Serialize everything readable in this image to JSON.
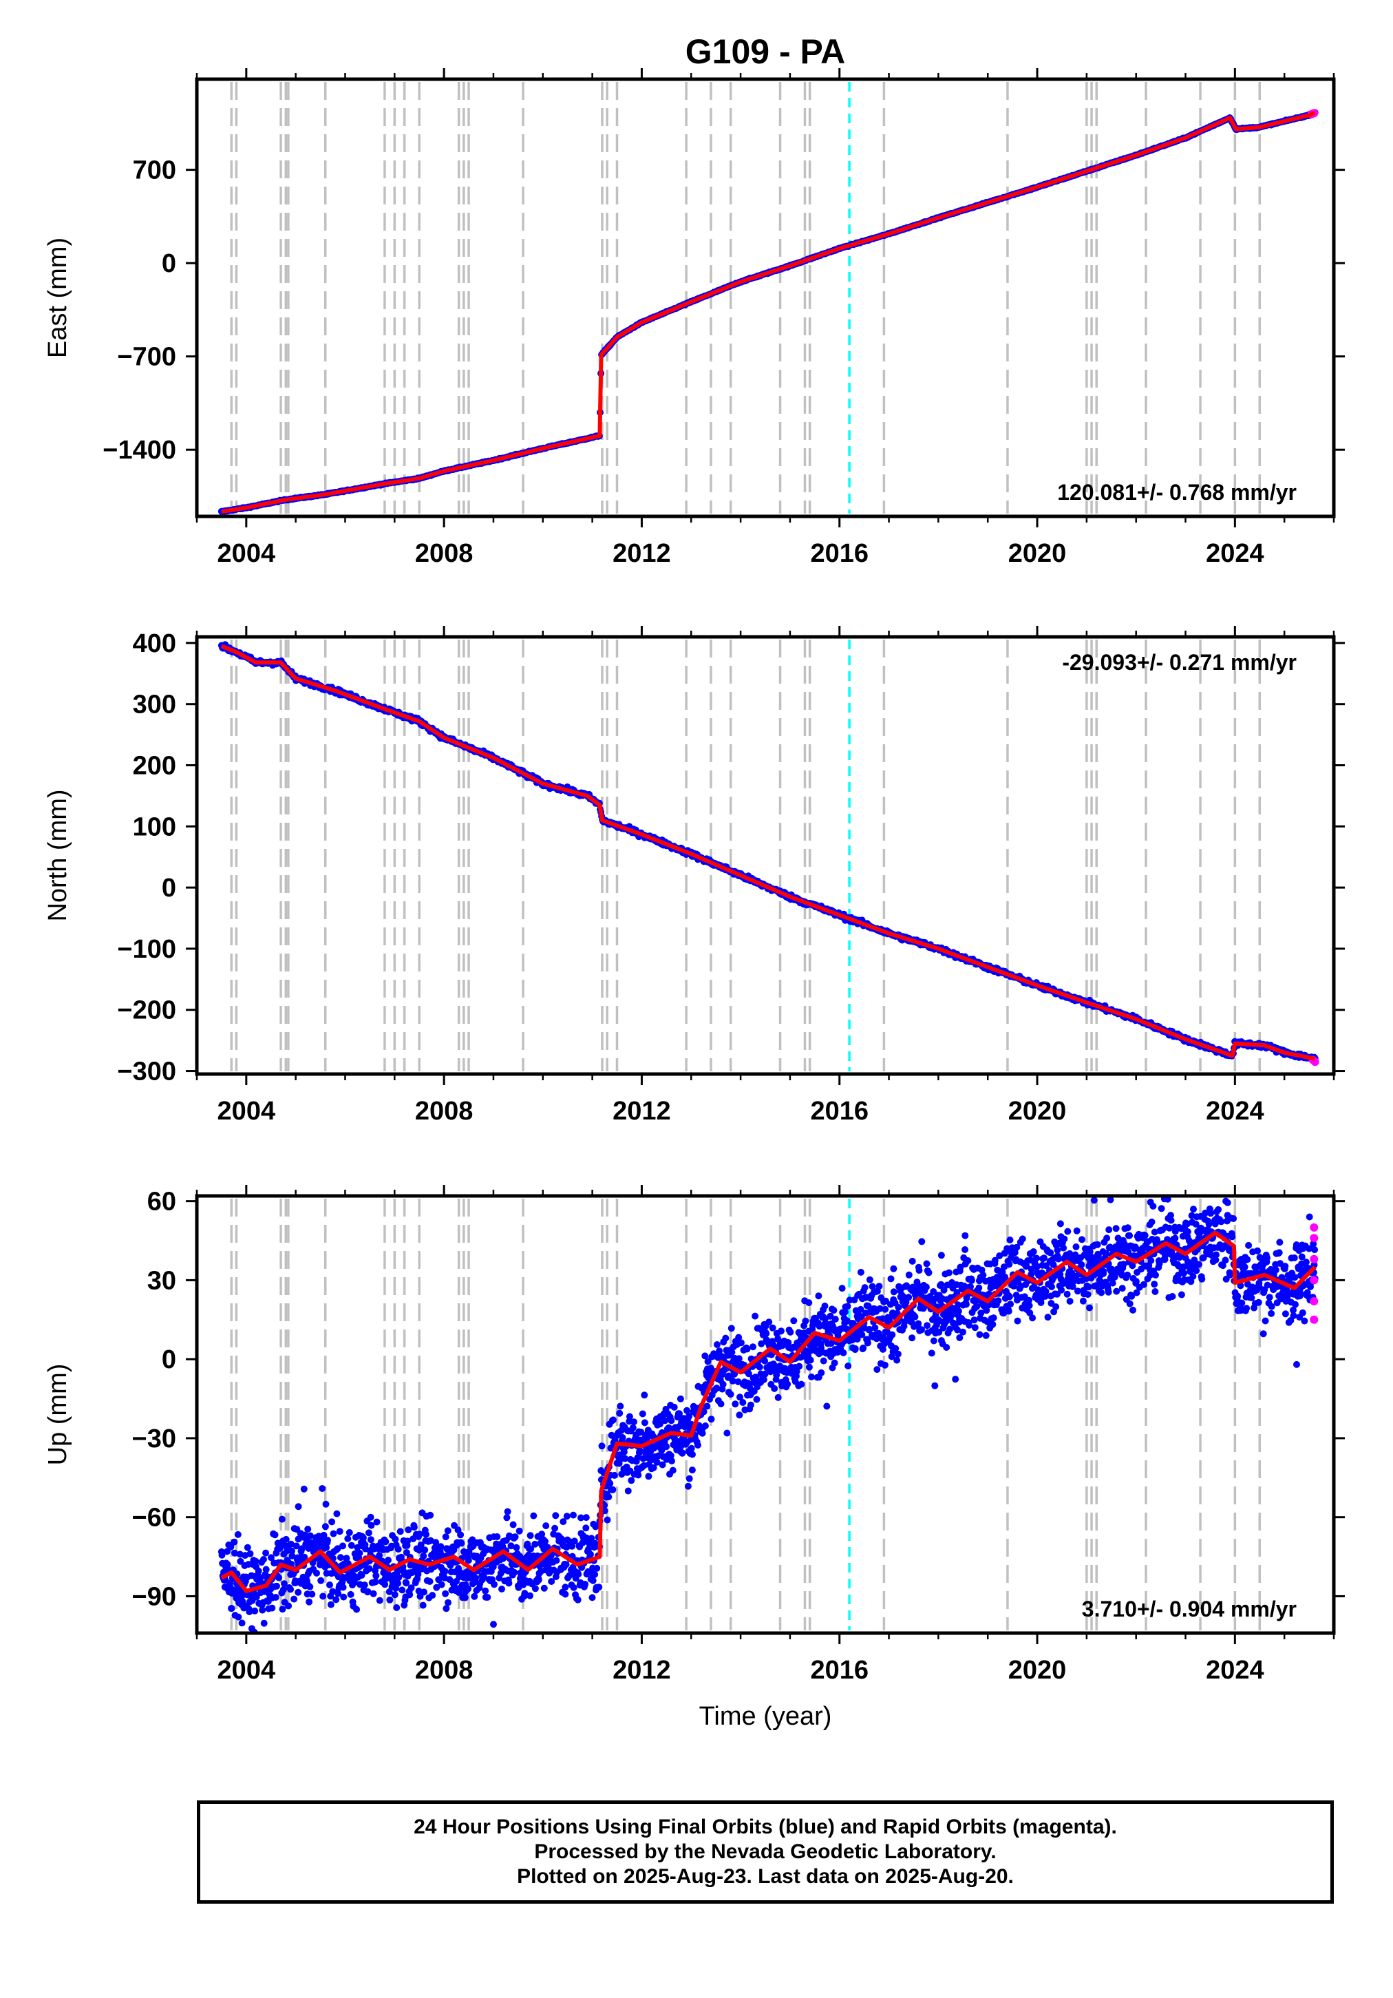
{
  "chart_data": {
    "title": "G109 - PA",
    "type": "scatter",
    "xlabel": "Time (year)",
    "xticks": [
      "2004",
      "2008",
      "2012",
      "2016",
      "2020",
      "2024"
    ],
    "xtick_values": [
      2004,
      2008,
      2012,
      2016,
      2020,
      2024
    ],
    "xlim": [
      2003.0,
      2026.0
    ],
    "step_markers": [
      2003.7,
      2003.8,
      2004.7,
      2004.8,
      2004.85,
      2005.6,
      2006.8,
      2007.0,
      2007.2,
      2007.5,
      2008.3,
      2008.4,
      2008.5,
      2009.6,
      2011.2,
      2011.3,
      2011.5,
      2012.9,
      2013.4,
      2013.8,
      2014.8,
      2015.3,
      2015.4,
      2016.9,
      2019.4,
      2021.0,
      2021.1,
      2021.2,
      2022.2,
      2023.3,
      2024.0,
      2024.5
    ],
    "reference_marker": 2016.2,
    "colors": {
      "final": "#0000ff",
      "rapid": "#ff00ff",
      "model": "#ff0000",
      "step": "#c0c0c0",
      "reference": "#00ffff"
    },
    "panels": [
      {
        "name": "east",
        "ylabel": "East (mm)",
        "yticks": [
          700,
          0,
          -700,
          -1400
        ],
        "ylim": [
          -1900,
          1380
        ],
        "rate": "120.081+/- 0.768 mm/yr",
        "rate_position": "bottom-right",
        "values": [
          [
            2003.5,
            -1865
          ],
          [
            2004.0,
            -1835
          ],
          [
            2004.8,
            -1775
          ],
          [
            2005.6,
            -1735
          ],
          [
            2006.8,
            -1655
          ],
          [
            2007.5,
            -1615
          ],
          [
            2008.0,
            -1560
          ],
          [
            2009.0,
            -1480
          ],
          [
            2010.0,
            -1390
          ],
          [
            2011.15,
            -1295
          ],
          [
            2011.18,
            -690
          ],
          [
            2011.5,
            -555
          ],
          [
            2012.0,
            -445
          ],
          [
            2013.0,
            -290
          ],
          [
            2014.0,
            -140
          ],
          [
            2015.0,
            -20
          ],
          [
            2016.0,
            110
          ],
          [
            2017.0,
            220
          ],
          [
            2018.0,
            340
          ],
          [
            2019.0,
            455
          ],
          [
            2020.0,
            570
          ],
          [
            2021.0,
            690
          ],
          [
            2022.0,
            810
          ],
          [
            2023.0,
            940
          ],
          [
            2023.9,
            1090
          ],
          [
            2024.02,
            1005
          ],
          [
            2024.5,
            1020
          ],
          [
            2025.5,
            1110
          ],
          [
            2025.62,
            1130
          ]
        ],
        "rapid": [
          [
            2025.55,
            1118
          ],
          [
            2025.6,
            1125
          ]
        ]
      },
      {
        "name": "north",
        "ylabel": "North (mm)",
        "yticks": [
          400,
          300,
          200,
          100,
          0,
          -100,
          -200,
          -300
        ],
        "ylim": [
          -305,
          410
        ],
        "rate": "-29.093+/- 0.271 mm/yr",
        "rate_position": "top-right",
        "values": [
          [
            2003.5,
            395
          ],
          [
            2003.8,
            385
          ],
          [
            2004.2,
            368
          ],
          [
            2004.7,
            368
          ],
          [
            2005.0,
            342
          ],
          [
            2005.8,
            322
          ],
          [
            2006.8,
            292
          ],
          [
            2007.5,
            272
          ],
          [
            2008.0,
            245
          ],
          [
            2009.0,
            212
          ],
          [
            2010.0,
            170
          ],
          [
            2010.9,
            150
          ],
          [
            2011.15,
            135
          ],
          [
            2011.2,
            110
          ],
          [
            2012.0,
            87
          ],
          [
            2013.0,
            55
          ],
          [
            2014.0,
            20
          ],
          [
            2015.0,
            -15
          ],
          [
            2016.0,
            -45
          ],
          [
            2017.0,
            -75
          ],
          [
            2018.0,
            -100
          ],
          [
            2019.0,
            -130
          ],
          [
            2020.0,
            -160
          ],
          [
            2021.0,
            -188
          ],
          [
            2022.0,
            -215
          ],
          [
            2023.0,
            -248
          ],
          [
            2023.95,
            -275
          ],
          [
            2024.0,
            -255
          ],
          [
            2024.6,
            -258
          ],
          [
            2025.0,
            -270
          ],
          [
            2025.62,
            -280
          ]
        ],
        "rapid": [
          [
            2025.58,
            -282
          ],
          [
            2025.62,
            -285
          ]
        ]
      },
      {
        "name": "up",
        "ylabel": "Up (mm)",
        "yticks": [
          60,
          30,
          0,
          -30,
          -60,
          -90
        ],
        "ylim": [
          -104,
          62
        ],
        "rate": "3.710+/- 0.904 mm/yr",
        "rate_position": "bottom-right",
        "scatter": 7,
        "values": [
          [
            2003.5,
            -83
          ],
          [
            2003.7,
            -81
          ],
          [
            2004.0,
            -88
          ],
          [
            2004.4,
            -86
          ],
          [
            2004.7,
            -78
          ],
          [
            2005.0,
            -80
          ],
          [
            2005.5,
            -73
          ],
          [
            2005.9,
            -81
          ],
          [
            2006.5,
            -75
          ],
          [
            2006.9,
            -80
          ],
          [
            2007.3,
            -76
          ],
          [
            2007.7,
            -78
          ],
          [
            2008.2,
            -75
          ],
          [
            2008.6,
            -80
          ],
          [
            2009.2,
            -73
          ],
          [
            2009.7,
            -80
          ],
          [
            2010.2,
            -72
          ],
          [
            2010.7,
            -78
          ],
          [
            2011.15,
            -75
          ],
          [
            2011.18,
            -50
          ],
          [
            2011.5,
            -32
          ],
          [
            2012.0,
            -33
          ],
          [
            2012.6,
            -28
          ],
          [
            2013.0,
            -29
          ],
          [
            2013.2,
            -18
          ],
          [
            2013.6,
            -1
          ],
          [
            2014.0,
            -5
          ],
          [
            2014.6,
            4
          ],
          [
            2015.0,
            -1
          ],
          [
            2015.5,
            10
          ],
          [
            2016.0,
            7
          ],
          [
            2016.6,
            16
          ],
          [
            2017.0,
            12
          ],
          [
            2017.6,
            23
          ],
          [
            2018.0,
            18
          ],
          [
            2018.6,
            26
          ],
          [
            2019.0,
            22
          ],
          [
            2019.6,
            33
          ],
          [
            2020.0,
            29
          ],
          [
            2020.6,
            37
          ],
          [
            2021.0,
            32
          ],
          [
            2021.6,
            40
          ],
          [
            2022.0,
            37
          ],
          [
            2022.6,
            44
          ],
          [
            2023.0,
            40
          ],
          [
            2023.6,
            48
          ],
          [
            2023.98,
            43
          ],
          [
            2024.0,
            29
          ],
          [
            2024.6,
            32
          ],
          [
            2025.2,
            27
          ],
          [
            2025.62,
            35
          ]
        ],
        "rapid": [
          [
            2025.6,
            50
          ],
          [
            2025.6,
            46
          ],
          [
            2025.6,
            38
          ],
          [
            2025.6,
            30
          ],
          [
            2025.6,
            22
          ],
          [
            2025.6,
            15
          ]
        ]
      }
    ],
    "caption": [
      "24 Hour Positions Using Final Orbits (blue) and Rapid Orbits (magenta).",
      "Processed by the Nevada Geodetic Laboratory.",
      "Plotted on 2025-Aug-23. Last data on 2025-Aug-20."
    ]
  }
}
